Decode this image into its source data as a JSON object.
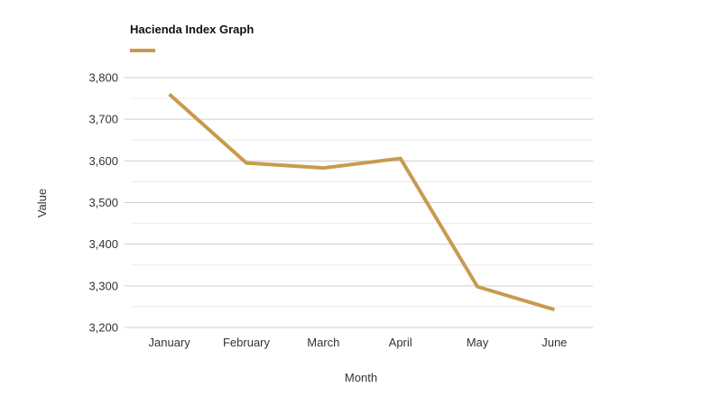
{
  "chart_data": {
    "type": "line",
    "title": "Hacienda Index Graph",
    "xlabel": "Month",
    "ylabel": "Value",
    "categories": [
      "January",
      "February",
      "March",
      "April",
      "May",
      "June"
    ],
    "series": [
      {
        "values": [
          3760,
          3595,
          3583,
          3606,
          3298,
          3243
        ],
        "color": "#C99A4E"
      }
    ],
    "ylim": [
      3200,
      3800
    ],
    "yticks": [
      3800,
      3700,
      3600,
      3500,
      3400,
      3300,
      3200
    ],
    "ytick_labels": [
      "3,800",
      "3,700",
      "3,600",
      "3,500",
      "3,400",
      "3,300",
      "3,200"
    ],
    "grid": true,
    "legend": "top-left",
    "colors": {
      "series": "#C99A4E",
      "grid_major": "#cfcfcf",
      "grid_minor": "#ececec",
      "text": "#333333",
      "title": "#111111"
    }
  }
}
